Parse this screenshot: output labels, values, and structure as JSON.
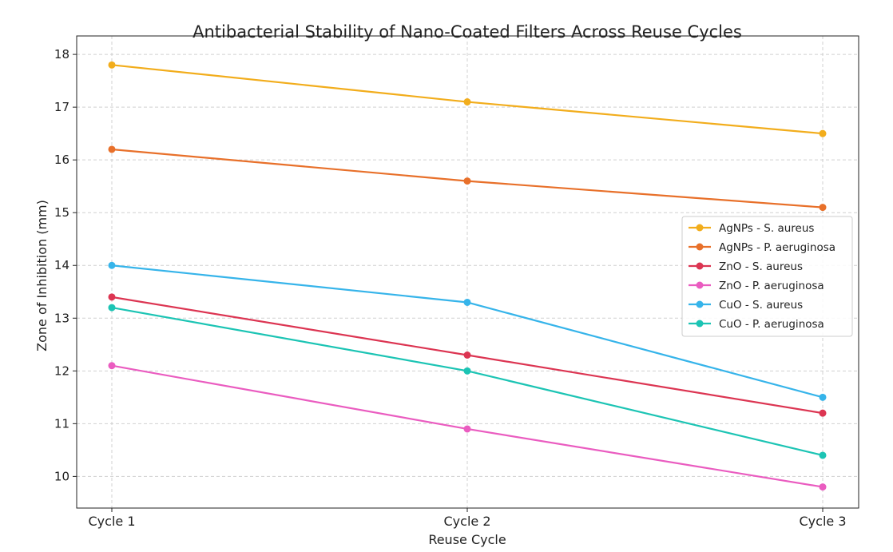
{
  "chart_data": {
    "type": "line",
    "title": "Antibacterial Stability of Nano-Coated Filters Across Reuse Cycles",
    "xlabel": "Reuse Cycle",
    "ylabel": "Zone of Inhibition (mm)",
    "categories": [
      "Cycle 1",
      "Cycle 2",
      "Cycle 3"
    ],
    "ylim": [
      9.4,
      18.35
    ],
    "yticks": [
      10,
      11,
      12,
      13,
      14,
      15,
      16,
      17,
      18
    ],
    "grid": true,
    "legend_placement": "center-right",
    "series": [
      {
        "name": "AgNPs - S. aureus",
        "color": "#f2ad1c",
        "values": [
          17.8,
          17.1,
          16.5
        ]
      },
      {
        "name": "AgNPs - P. aeruginosa",
        "color": "#e8702a",
        "values": [
          16.2,
          15.6,
          15.1
        ]
      },
      {
        "name": "ZnO - S. aureus",
        "color": "#dc3552",
        "values": [
          13.4,
          12.3,
          11.2
        ]
      },
      {
        "name": "ZnO - P. aeruginosa",
        "color": "#ea5cc0",
        "values": [
          12.1,
          10.9,
          9.8
        ]
      },
      {
        "name": "CuO - S. aureus",
        "color": "#36b4ea",
        "values": [
          14.0,
          13.3,
          11.5
        ]
      },
      {
        "name": "CuO - P. aeruginosa",
        "color": "#1cc4b4",
        "values": [
          13.2,
          12.0,
          10.4
        ]
      }
    ]
  }
}
